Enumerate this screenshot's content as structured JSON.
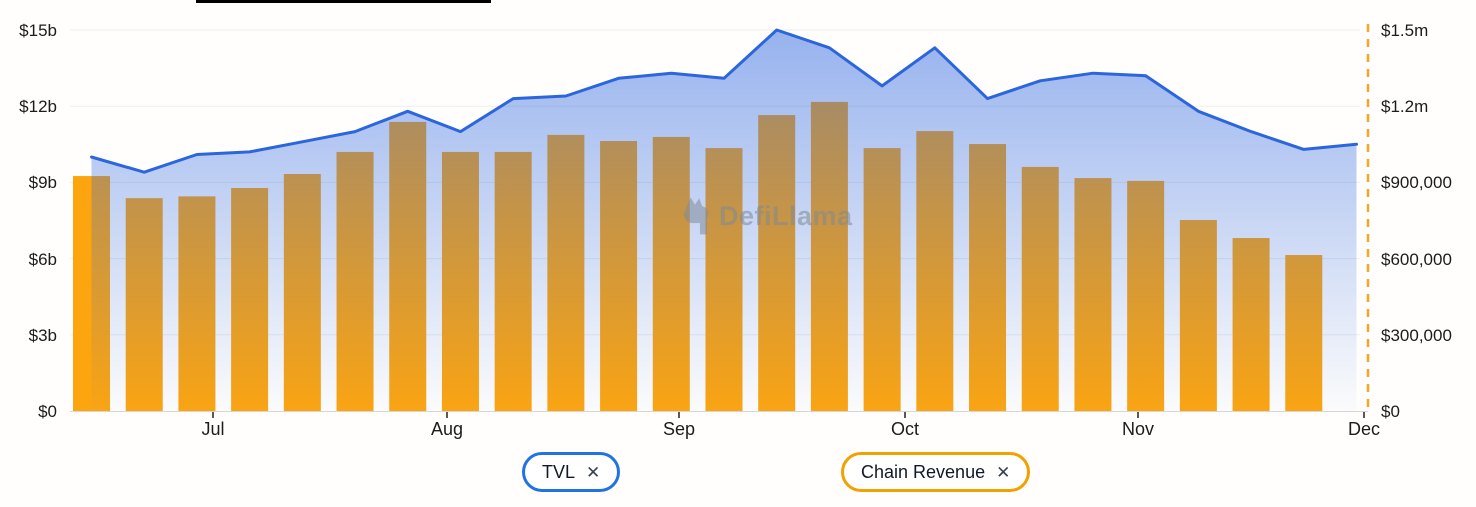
{
  "watermark": {
    "text": "DefiLlama"
  },
  "legend": {
    "tvl": {
      "label": "TVL",
      "close_label": "✕",
      "color": "#2172E5"
    },
    "chain_revenue": {
      "label": "Chain Revenue",
      "close_label": "✕",
      "color": "#F2A200"
    }
  },
  "colors": {
    "tvl_line": "#2b66dd",
    "tvl_area_top": "rgba(47,103,224,0.50)",
    "tvl_area_bottom": "rgba(47,103,224,0.02)",
    "bar_orange": "#FDA50F",
    "right_axis_dash": "#F5A623",
    "gridline": "#ededed",
    "axis_line": "#d6d6d6",
    "tick_mark": "#222222"
  },
  "chart_data": {
    "type": "combo",
    "title": "",
    "x_ticks": [
      "Jul",
      "Aug",
      "Sep",
      "Oct",
      "Nov",
      "Dec"
    ],
    "grid": true,
    "legend_position": "bottom",
    "left_axis": {
      "ticks": [
        "$15b",
        "$12b",
        "$9b",
        "$6b",
        "$3b",
        "$0"
      ],
      "values_billions": [
        15,
        12,
        9,
        6,
        3,
        0
      ],
      "min": 0,
      "max": 15
    },
    "right_axis": {
      "ticks": [
        "$1.5m",
        "$1.2m",
        "$900,000",
        "$600,000",
        "$300,000",
        "$0"
      ],
      "values": [
        1500000,
        1200000,
        900000,
        600000,
        300000,
        0
      ],
      "min": 0,
      "max": 1500000
    },
    "series": [
      {
        "name": "TVL",
        "type": "area-line",
        "axis": "left",
        "unit": "USD billions",
        "values": [
          10.0,
          9.4,
          10.1,
          10.2,
          10.6,
          11.0,
          11.8,
          11.0,
          12.3,
          12.4,
          13.1,
          13.3,
          13.1,
          15.0,
          14.3,
          12.8,
          14.3,
          12.3,
          13.0,
          13.3,
          13.2,
          11.8,
          11.0,
          10.3,
          10.5
        ]
      },
      {
        "name": "Chain Revenue",
        "type": "bar",
        "axis": "right",
        "unit": "USD",
        "values": [
          925000,
          838000,
          845000,
          878000,
          933000,
          1020000,
          1138000,
          1020000,
          1020000,
          1087000,
          1063000,
          1079000,
          1035000,
          1165000,
          1217000,
          1035000,
          1102000,
          1051000,
          961000,
          917000,
          906000,
          752000,
          681000,
          614000
        ]
      }
    ]
  }
}
